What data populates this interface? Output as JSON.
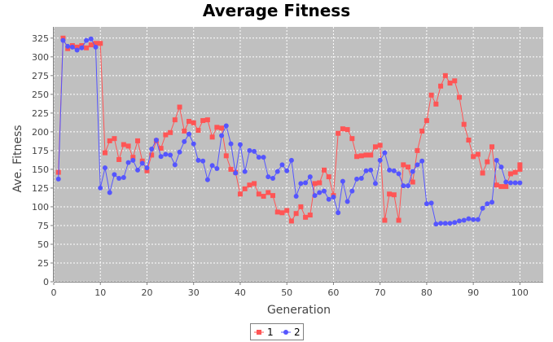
{
  "chart_data": {
    "type": "line",
    "title": "Average Fitness",
    "xlabel": "Generation",
    "ylabel": "Ave. Fitness",
    "xlim": [
      0,
      105
    ],
    "ylim": [
      0,
      340
    ],
    "xticks": [
      0,
      10,
      20,
      30,
      40,
      50,
      60,
      70,
      80,
      90,
      100
    ],
    "yticks": [
      0,
      25,
      50,
      75,
      100,
      125,
      150,
      175,
      200,
      225,
      250,
      275,
      300,
      325
    ],
    "grid": true,
    "legend_position": "bottom-center",
    "colors": {
      "plot_background": "#c0c0c0",
      "grid": "#ffffff",
      "series_1": "#ff5555",
      "series_2": "#5555ff"
    },
    "series": [
      {
        "name": "1",
        "marker": "square",
        "x": [
          1,
          2,
          3,
          4,
          5,
          6,
          7,
          8,
          9,
          10,
          11,
          12,
          13,
          14,
          15,
          16,
          17,
          18,
          19,
          20,
          21,
          22,
          23,
          24,
          25,
          26,
          27,
          28,
          29,
          30,
          31,
          32,
          33,
          34,
          35,
          36,
          37,
          38,
          39,
          40,
          41,
          42,
          43,
          44,
          45,
          46,
          47,
          48,
          49,
          50,
          51,
          52,
          53,
          54,
          55,
          56,
          57,
          58,
          59,
          60,
          61,
          62,
          63,
          64,
          65,
          66,
          67,
          68,
          69,
          70,
          71,
          72,
          73,
          74,
          75,
          76,
          77,
          78,
          79,
          80,
          81,
          82,
          83,
          84,
          85,
          86,
          87,
          88,
          89,
          90,
          91,
          92,
          93,
          94,
          95,
          96,
          97,
          98,
          99,
          100,
          100
        ],
        "y": [
          146,
          325,
          311,
          315,
          313,
          315,
          312,
          316,
          318,
          318,
          172,
          188,
          191,
          163,
          183,
          181,
          166,
          188,
          161,
          148,
          169,
          188,
          178,
          196,
          199,
          216,
          233,
          201,
          214,
          212,
          202,
          215,
          216,
          193,
          206,
          205,
          168,
          150,
          146,
          117,
          124,
          129,
          131,
          117,
          114,
          119,
          115,
          93,
          92,
          95,
          81,
          91,
          100,
          86,
          89,
          131,
          132,
          149,
          140,
          115,
          198,
          204,
          203,
          191,
          167,
          168,
          169,
          169,
          180,
          182,
          82,
          117,
          116,
          82,
          156,
          153,
          133,
          175,
          201,
          215,
          249,
          237,
          261,
          275,
          265,
          268,
          246,
          210,
          189,
          167,
          170,
          145,
          160,
          180,
          129,
          127,
          127,
          144,
          146,
          150,
          156
        ]
      },
      {
        "name": "2",
        "marker": "circle",
        "x": [
          1,
          2,
          3,
          4,
          5,
          6,
          7,
          8,
          9,
          10,
          11,
          12,
          13,
          14,
          15,
          16,
          17,
          18,
          19,
          20,
          21,
          22,
          23,
          24,
          25,
          26,
          27,
          28,
          29,
          30,
          31,
          32,
          33,
          34,
          35,
          36,
          37,
          38,
          39,
          40,
          41,
          42,
          43,
          44,
          45,
          46,
          47,
          48,
          49,
          50,
          51,
          52,
          53,
          54,
          55,
          56,
          57,
          58,
          59,
          60,
          61,
          62,
          63,
          64,
          65,
          66,
          67,
          68,
          69,
          70,
          71,
          72,
          73,
          74,
          75,
          76,
          77,
          78,
          79,
          80,
          81,
          82,
          83,
          84,
          85,
          86,
          87,
          88,
          89,
          90,
          91,
          92,
          93,
          94,
          95,
          96,
          97,
          98,
          99,
          100
        ],
        "y": [
          137,
          322,
          314,
          313,
          309,
          312,
          322,
          324,
          313,
          125,
          152,
          119,
          143,
          138,
          139,
          159,
          162,
          149,
          158,
          152,
          177,
          189,
          167,
          170,
          169,
          156,
          173,
          187,
          197,
          184,
          162,
          161,
          136,
          155,
          151,
          195,
          208,
          184,
          145,
          183,
          147,
          175,
          174,
          166,
          166,
          140,
          138,
          147,
          156,
          148,
          162,
          114,
          131,
          132,
          140,
          115,
          119,
          121,
          110,
          113,
          92,
          134,
          107,
          121,
          137,
          138,
          148,
          149,
          131,
          162,
          172,
          149,
          148,
          144,
          128,
          128,
          147,
          156,
          161,
          104,
          105,
          77,
          78,
          78,
          78,
          79,
          81,
          82,
          84,
          83,
          83,
          98,
          104,
          106,
          162,
          153,
          133,
          132,
          132,
          132
        ]
      }
    ]
  }
}
